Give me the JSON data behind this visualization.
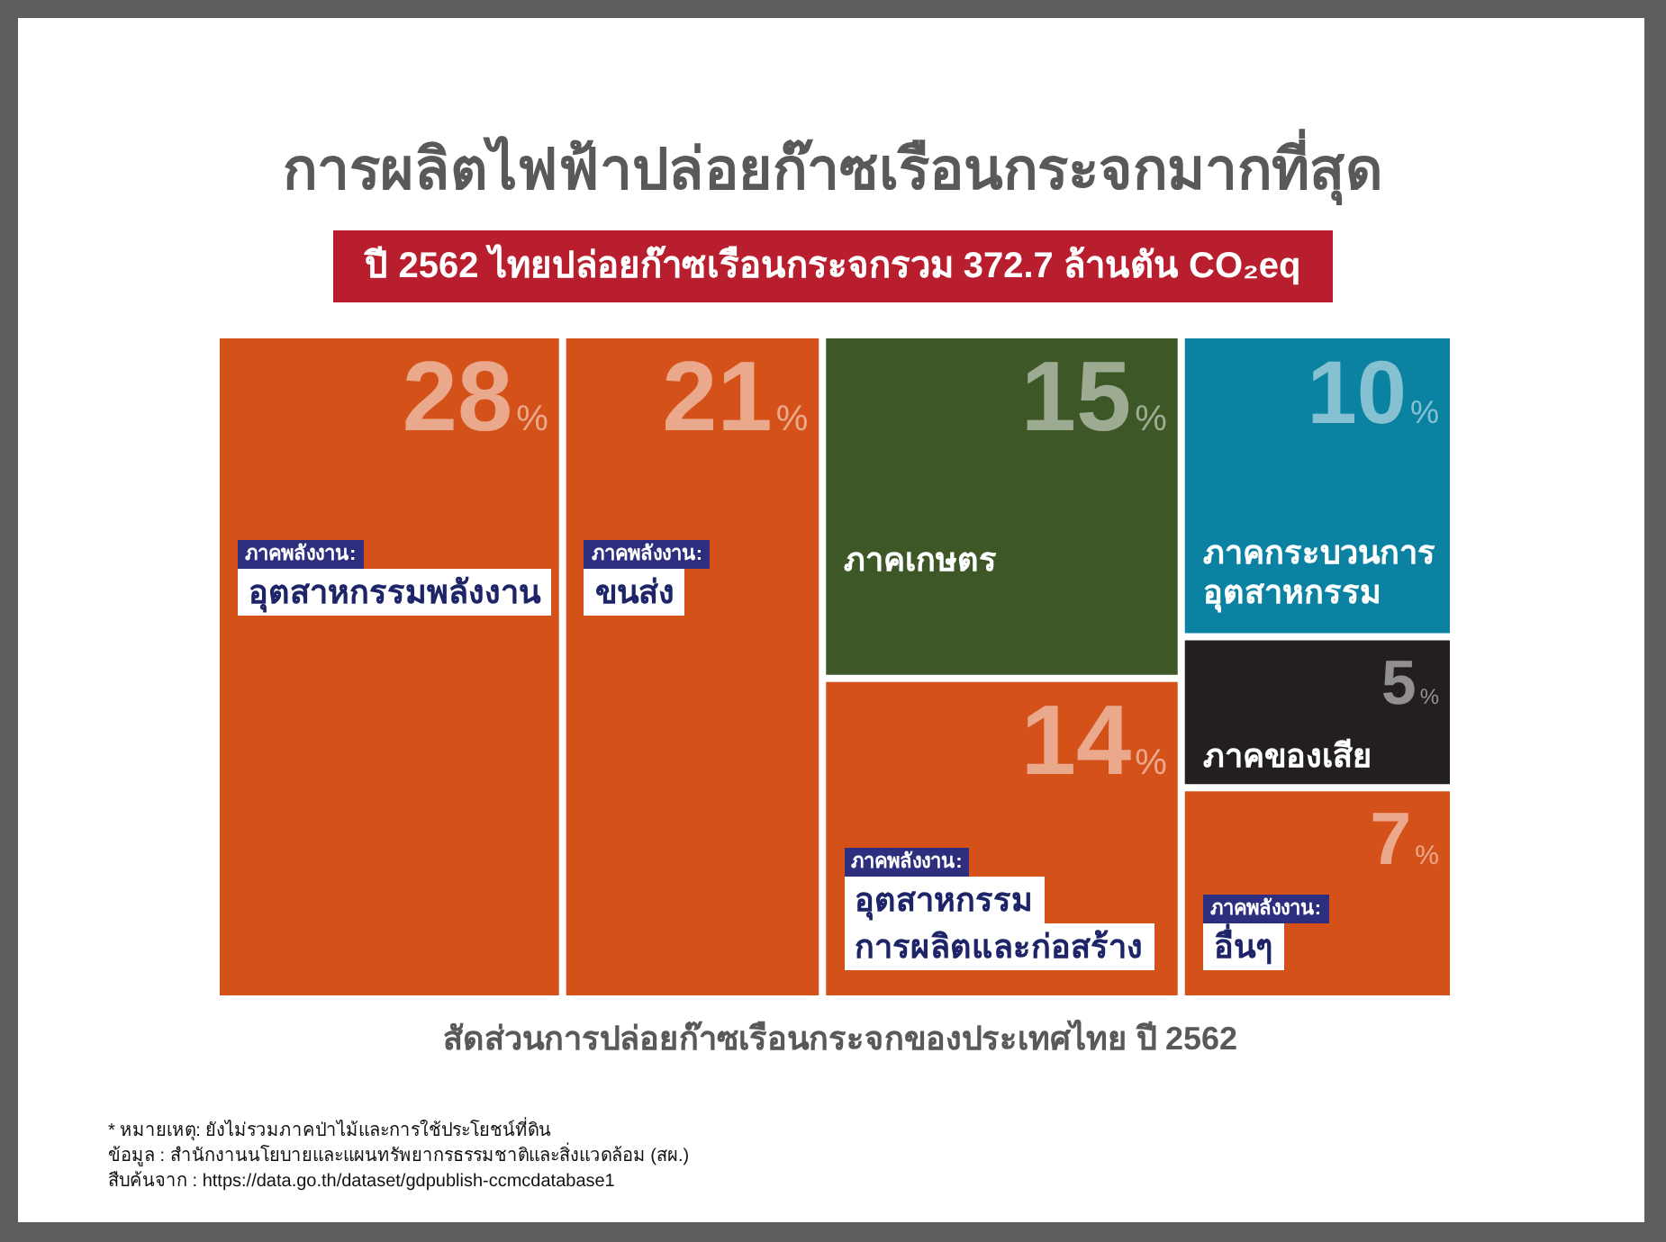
{
  "chart_data": {
    "type": "other",
    "title": "การผลิตไฟฟ้าปล่อยก๊าซเรือนกระจกมากที่สุด",
    "subtitle": "ปี 2562 ไทยปล่อยก๊าซเรือนกระจกรวม 372.7 ล้านตัน CO₂eq",
    "categories": [
      "ภาคพลังงาน: อุตสาหกรรมพลังงาน",
      "ภาคพลังงาน: ขนส่ง",
      "ภาคเกษตร",
      "ภาคพลังงาน: อุตสาหกรรม การผลิตและก่อสร้าง",
      "ภาคกระบวนการ อุตสาหกรรม",
      "ภาคของเสีย",
      "ภาคพลังงาน: อื่นๆ"
    ],
    "values": [
      28,
      21,
      15,
      14,
      10,
      5,
      7
    ],
    "value_labels": [
      "28%",
      "21%",
      "15%",
      "14%",
      "10%",
      "5%",
      "7%"
    ],
    "colors": [
      "#d5511a",
      "#d5511a",
      "#3d5726",
      "#d5511a",
      "#0b82a2",
      "#231f20",
      "#d5511a"
    ],
    "annotations": [
      "สัดส่วนการปล่อยก๊าซเรือนกระจกของประเทศไทย ปี 2562",
      "* หมายเหตุ: ยังไม่รวมภาคป่าไม้และการใช้ประโยชน์ที่ดิน",
      "ข้อมูล : สำนักงานนโยบายและแผนทรัพยากรธรรมชาติและสิ่งแวดล้อม (สผ.)",
      "สืบค้นจาก : https://data.go.th/dataset/gdpublish-ccmcdatabase1"
    ]
  }
}
